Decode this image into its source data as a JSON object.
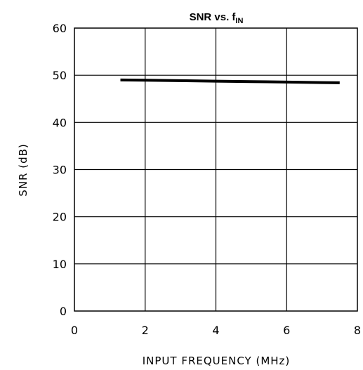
{
  "chart_data": {
    "type": "line",
    "title": "SNR vs. f",
    "title_subscript": "IN",
    "xlabel": "INPUT FREQUENCY (MHz)",
    "ylabel": "SNR (dB)",
    "xlim": [
      0,
      8
    ],
    "ylim": [
      0,
      60
    ],
    "xticks": [
      "0",
      "2",
      "4",
      "6",
      "8"
    ],
    "yticks": [
      "0",
      "10",
      "20",
      "30",
      "40",
      "50",
      "60"
    ],
    "grid": true,
    "legend": "none",
    "series": [
      {
        "color": "#000000",
        "x": [
          1.3,
          2,
          3,
          4,
          5,
          6,
          7,
          7.5
        ],
        "y": [
          49.0,
          48.95,
          48.85,
          48.75,
          48.65,
          48.55,
          48.45,
          48.4
        ]
      }
    ]
  }
}
